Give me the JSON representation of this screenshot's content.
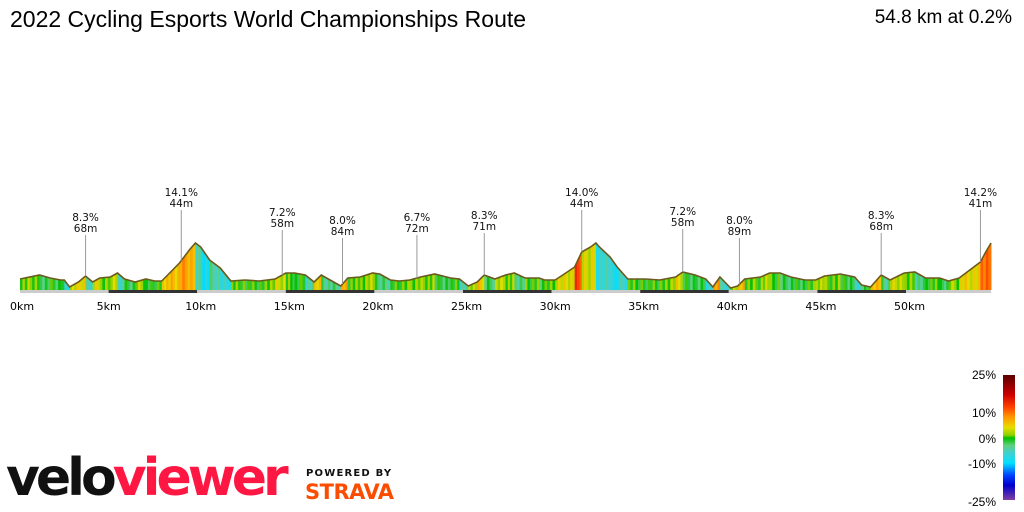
{
  "header": {
    "title": "2022 Cycling Esports World Championships Route",
    "summary": "54.8 km at 0.2%"
  },
  "branding": {
    "logo_part1": "velo",
    "logo_part2": "viewer",
    "powered_by": "POWERED BY",
    "partner": "STRAVA",
    "logo_colors": {
      "velo": "#111111",
      "viewer": "#ff1744",
      "strava": "#fc4c02"
    }
  },
  "chart_data": {
    "type": "area",
    "title": "2022 Cycling Esports World Championships Route",
    "xlabel": "",
    "ylabel": "",
    "x_unit": "km",
    "xlim": [
      0,
      54.8
    ],
    "x_ticks": [
      0,
      5,
      10,
      15,
      20,
      25,
      30,
      35,
      40,
      45,
      50
    ],
    "x_tick_labels": [
      "0km",
      "5km",
      "10km",
      "15km",
      "20km",
      "25km",
      "30km",
      "35km",
      "40km",
      "45km",
      "50km"
    ],
    "grid": false,
    "fill_colored_by": "gradient",
    "profile": {
      "km": [
        0,
        1.1,
        1.7,
        2.3,
        2.5,
        2.8,
        3.3,
        3.7,
        4.1,
        4.5,
        5.1,
        5.5,
        5.9,
        6.5,
        7.1,
        7.6,
        8.0,
        8.5,
        9.0,
        9.6,
        9.9,
        10.2,
        10.7,
        11.3,
        11.9,
        12.7,
        13.5,
        14.4,
        15.0,
        15.5,
        16.1,
        16.6,
        17.0,
        17.5,
        18.1,
        18.5,
        19.2,
        19.9,
        20.3,
        20.9,
        21.4,
        22.0,
        22.6,
        23.4,
        24.3,
        24.8,
        25.3,
        25.8,
        26.2,
        26.8,
        27.4,
        27.9,
        28.5,
        29.3,
        29.6,
        30.2,
        30.8,
        31.3,
        31.7,
        32.2,
        32.5,
        32.7,
        33.3,
        33.7,
        34.3,
        35.3,
        36.1,
        37.0,
        37.4,
        38.1,
        38.7,
        39.1,
        39.5,
        40.1,
        40.5,
        40.9,
        41.8,
        42.3,
        42.9,
        43.5,
        44.3,
        44.9,
        45.4,
        46.3,
        47.1,
        47.5,
        48.0,
        48.6,
        49.1,
        49.9,
        50.5,
        51.1,
        51.9,
        52.4,
        53.0,
        53.6,
        54.2,
        54.5,
        54.8
      ],
      "relative_elevation_m": [
        11,
        15,
        12,
        10,
        10,
        3,
        8,
        14,
        8,
        12,
        13,
        17,
        11,
        8,
        11,
        9,
        9,
        18,
        27,
        41,
        47,
        43,
        30,
        22,
        9,
        10,
        9,
        11,
        17,
        17,
        15,
        8,
        15,
        10,
        4,
        12,
        13,
        17,
        16,
        10,
        9,
        10,
        13,
        16,
        12,
        11,
        4,
        8,
        15,
        11,
        15,
        17,
        12,
        12,
        10,
        10,
        17,
        23,
        38,
        43,
        47,
        43,
        33,
        23,
        11,
        11,
        10,
        13,
        18,
        15,
        11,
        3,
        13,
        2,
        4,
        11,
        13,
        17,
        17,
        13,
        10,
        10,
        14,
        16,
        13,
        5,
        3,
        15,
        10,
        17,
        18,
        12,
        12,
        9,
        12,
        20,
        28,
        38,
        47
      ]
    },
    "climbs": [
      {
        "km": 3.7,
        "gradient": "8.3%",
        "gain": "68m"
      },
      {
        "km": 9.1,
        "gradient": "14.1%",
        "gain": "44m"
      },
      {
        "km": 14.8,
        "gradient": "7.2%",
        "gain": "58m"
      },
      {
        "km": 18.2,
        "gradient": "8.0%",
        "gain": "84m"
      },
      {
        "km": 22.4,
        "gradient": "6.7%",
        "gain": "72m"
      },
      {
        "km": 26.2,
        "gradient": "8.3%",
        "gain": "71m"
      },
      {
        "km": 31.7,
        "gradient": "14.0%",
        "gain": "44m"
      },
      {
        "km": 37.4,
        "gradient": "7.2%",
        "gain": "58m"
      },
      {
        "km": 40.6,
        "gradient": "8.0%",
        "gain": "89m"
      },
      {
        "km": 48.6,
        "gradient": "8.3%",
        "gain": "68m"
      },
      {
        "km": 54.2,
        "gradient": "14.2%",
        "gain": "41m"
      }
    ],
    "legend": {
      "placement": "bottom-right",
      "title": "",
      "ticks": [
        25,
        10,
        0,
        -10,
        -25
      ],
      "tick_labels": [
        "25%",
        "10%",
        "0%",
        "-10%",
        "-25%"
      ],
      "color_stops": [
        {
          "gradient": 25,
          "color": "#5a0000"
        },
        {
          "gradient": 17,
          "color": "#cc0000"
        },
        {
          "gradient": 12,
          "color": "#ff4000"
        },
        {
          "gradient": 8,
          "color": "#ff9900"
        },
        {
          "gradient": 4,
          "color": "#e6dd00"
        },
        {
          "gradient": 1,
          "color": "#88d000"
        },
        {
          "gradient": 0,
          "color": "#00c000"
        },
        {
          "gradient": -3,
          "color": "#60d080"
        },
        {
          "gradient": -6,
          "color": "#40d0d0"
        },
        {
          "gradient": -10,
          "color": "#00e0ff"
        },
        {
          "gradient": -15,
          "color": "#0040ff"
        },
        {
          "gradient": -19,
          "color": "#0000cc"
        },
        {
          "gradient": -25,
          "color": "#8040a0"
        }
      ]
    }
  }
}
